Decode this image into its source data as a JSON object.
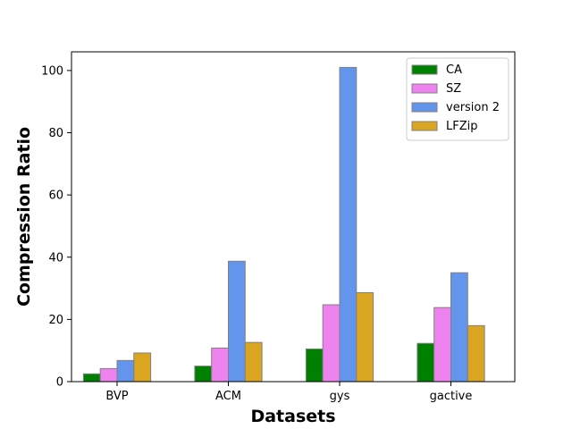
{
  "chart_data": {
    "type": "bar",
    "title": "",
    "xlabel": "Datasets",
    "ylabel": "Compression Ratio",
    "categories": [
      "BVP",
      "ACM",
      "gys",
      "gactive"
    ],
    "series": [
      {
        "name": "CA",
        "color": "#008000",
        "values": [
          2.5,
          5.0,
          10.5,
          12.3
        ]
      },
      {
        "name": "SZ",
        "color": "#ee82ee",
        "values": [
          4.2,
          10.8,
          24.7,
          23.8
        ]
      },
      {
        "name": "version 2",
        "color": "#6495ed",
        "values": [
          6.8,
          38.7,
          101.0,
          35.0
        ]
      },
      {
        "name": "LFZip",
        "color": "#daa520",
        "values": [
          9.2,
          12.6,
          28.6,
          18.0
        ]
      }
    ],
    "ylim": [
      0,
      106
    ],
    "yticks": [
      0,
      20,
      40,
      60,
      80,
      100
    ],
    "grid": false,
    "legend_position": "top-right",
    "bar_edge_color": "#808080"
  }
}
